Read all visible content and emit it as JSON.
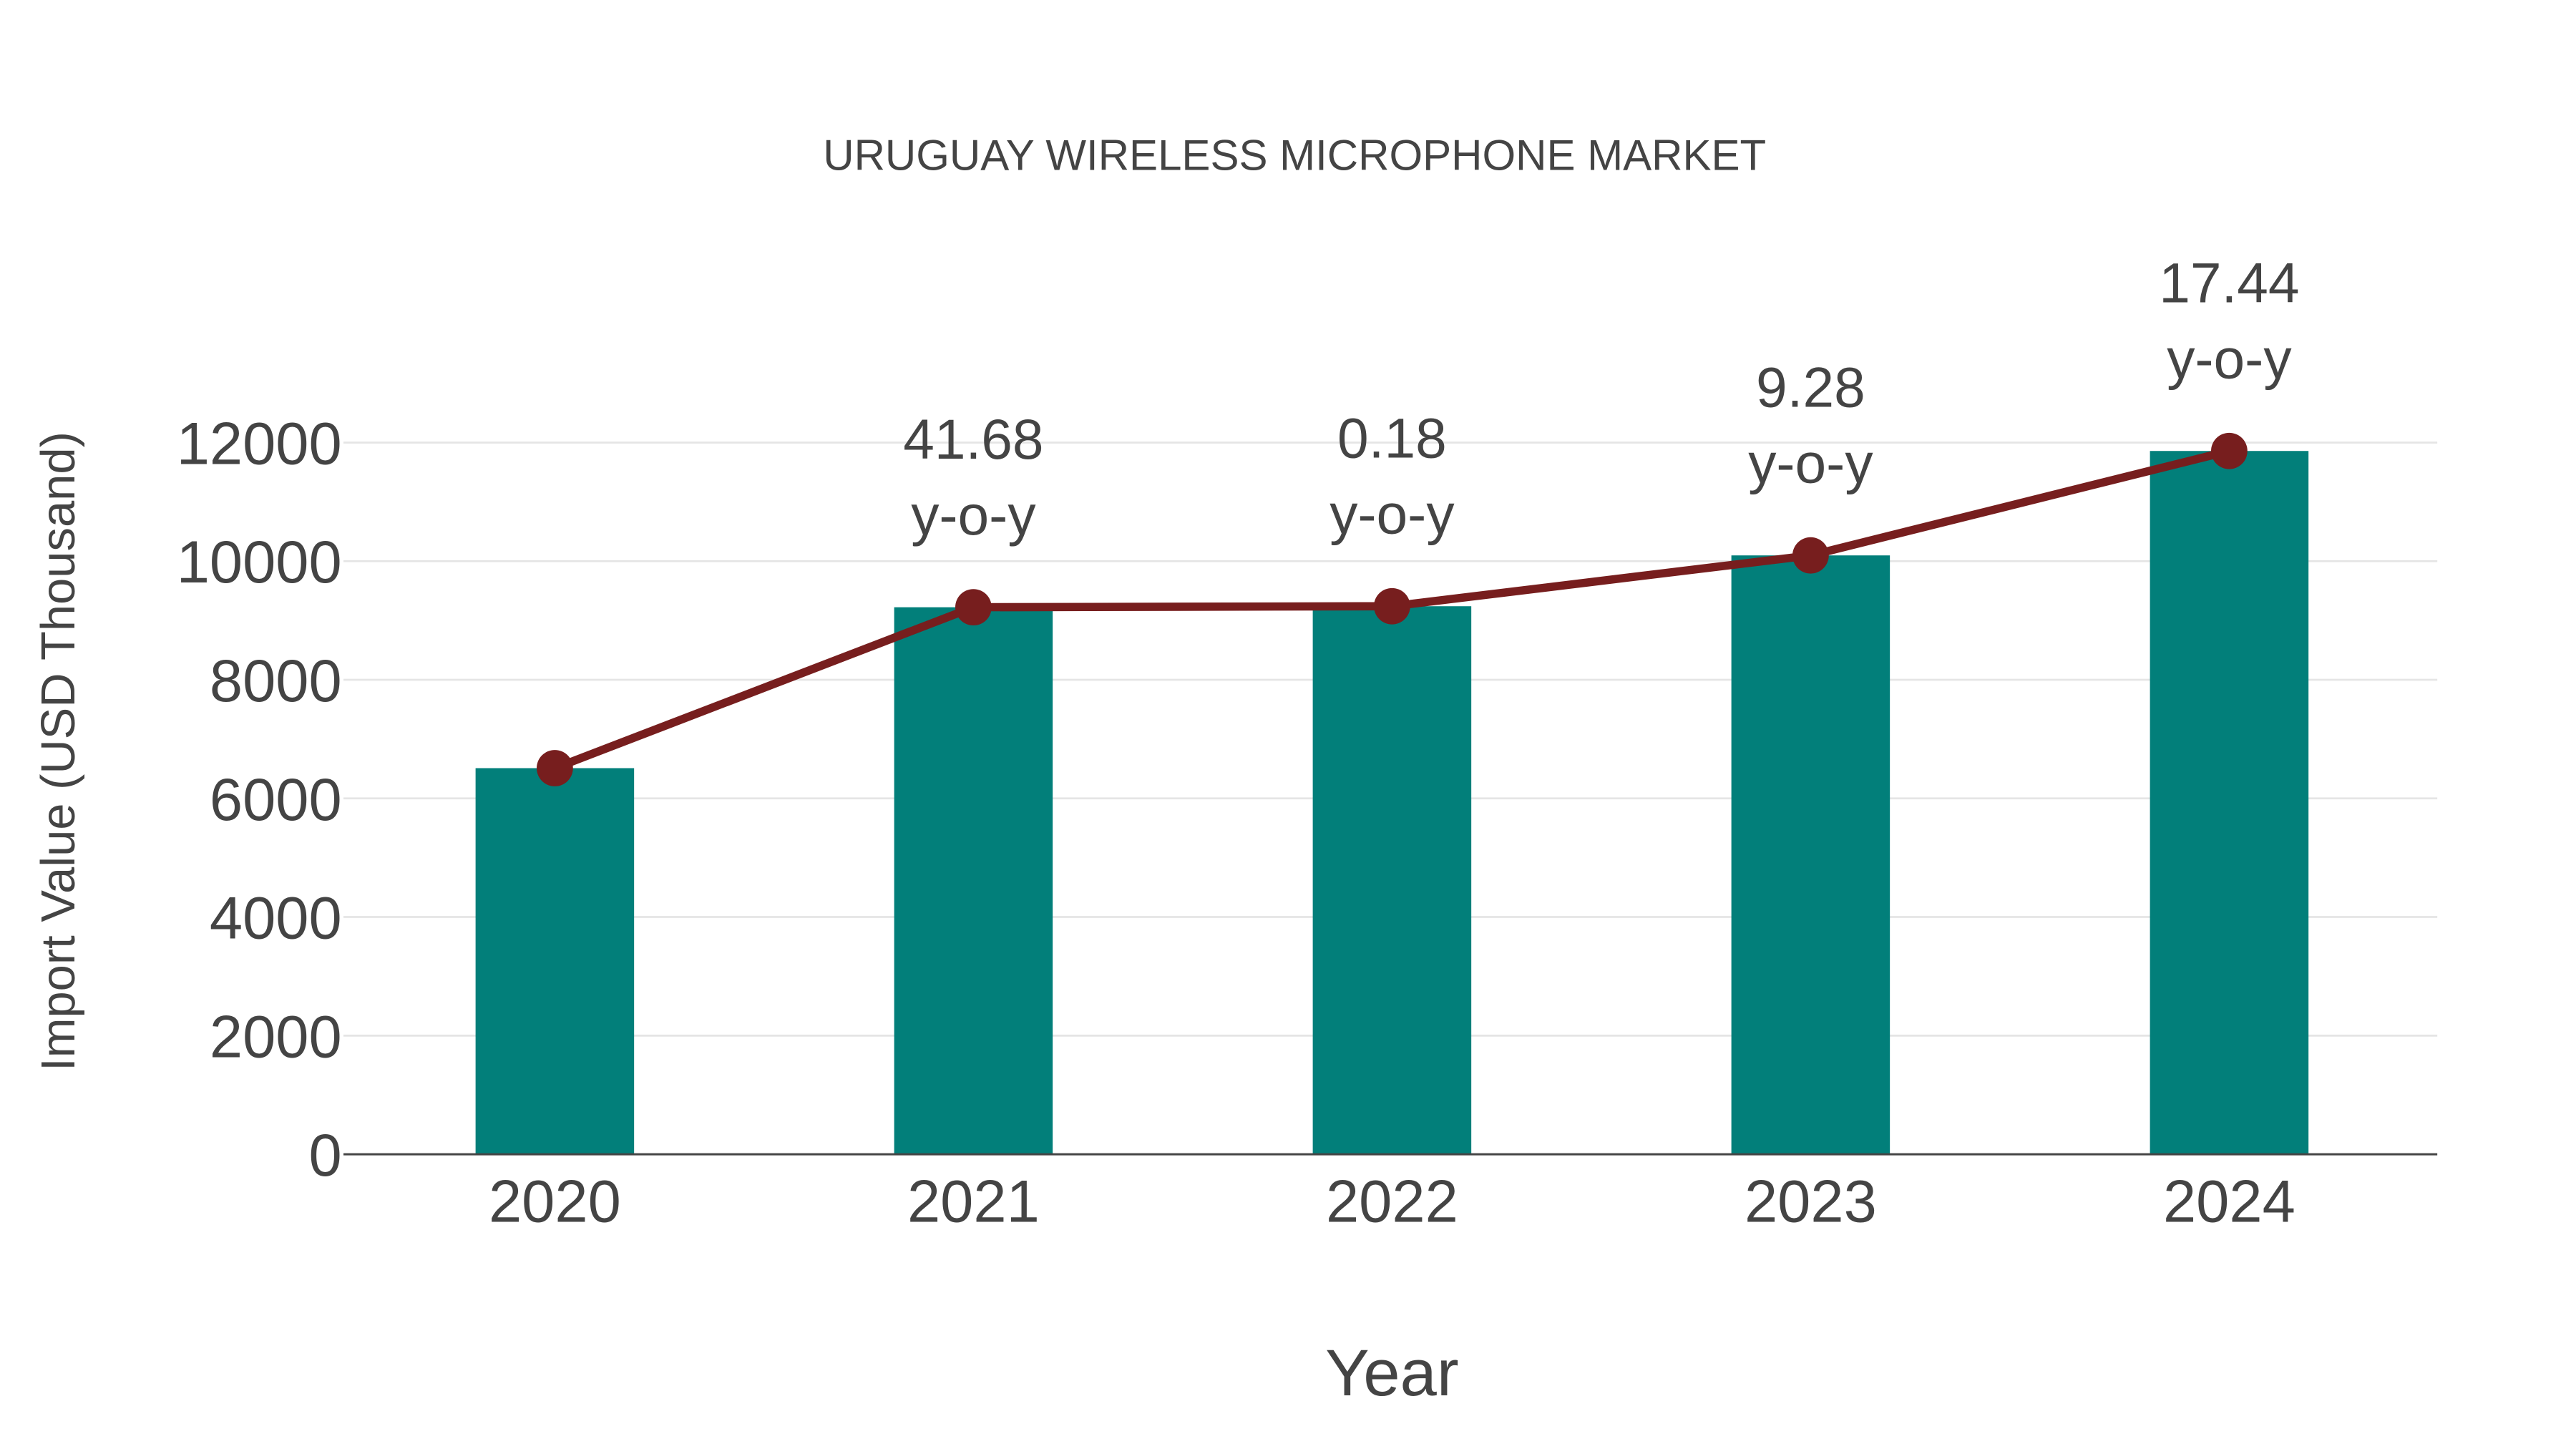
{
  "chart_data": {
    "type": "bar",
    "title": "URUGUAY WIRELESS MICROPHONE MARKET",
    "xlabel": "Year",
    "ylabel": "Import Value (USD Thousand)",
    "categories": [
      "2020",
      "2021",
      "2022",
      "2023",
      "2024"
    ],
    "values": [
      6510,
      9223,
      9240,
      10097,
      11858
    ],
    "ylim": [
      0,
      12000
    ],
    "yticks": [
      0,
      2000,
      4000,
      6000,
      8000,
      10000,
      12000
    ],
    "grid": true,
    "legend": "none",
    "line_series": {
      "name": "trend",
      "values": [
        6510,
        9223,
        9240,
        10097,
        11858
      ]
    },
    "annotations": [
      {
        "category": "2021",
        "value": "41.68",
        "suffix": "y-o-y"
      },
      {
        "category": "2022",
        "value": "0.18",
        "suffix": "y-o-y"
      },
      {
        "category": "2023",
        "value": "9.28",
        "suffix": "y-o-y"
      },
      {
        "category": "2024",
        "value": "17.44",
        "suffix": "y-o-y"
      }
    ],
    "colors": {
      "bar": "#027f7a",
      "line": "#771e1e",
      "text": "#444444",
      "grid": "#e5e5e5"
    }
  }
}
